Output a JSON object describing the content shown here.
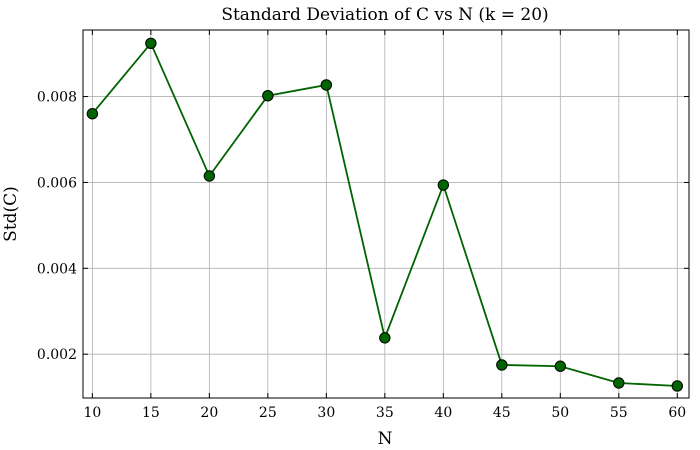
{
  "chart_data": {
    "type": "line",
    "title": "Standard Deviation of C vs N (k = 20)",
    "xlabel": "N",
    "ylabel": "Std(C)",
    "x": [
      10,
      15,
      20,
      25,
      30,
      35,
      40,
      45,
      50,
      55,
      60
    ],
    "xticks": [
      10,
      15,
      20,
      25,
      30,
      35,
      40,
      45,
      50,
      55,
      60
    ],
    "xtick_labels": [
      "10",
      "15",
      "20",
      "25",
      "30",
      "35",
      "40",
      "45",
      "50",
      "55",
      "60"
    ],
    "yticks": [
      0.002,
      0.004,
      0.006,
      0.008
    ],
    "ytick_labels": [
      "0.002",
      "0.004",
      "0.006",
      "0.008"
    ],
    "xlim": [
      9.2,
      61.0
    ],
    "ylim": [
      0.00098,
      0.00955
    ],
    "grid": true,
    "series": [
      {
        "values": [
          0.0076,
          0.00924,
          0.00615,
          0.00802,
          0.00827,
          0.00238,
          0.00594,
          0.00175,
          0.00172,
          0.00133,
          0.00126
        ],
        "color": "#006400",
        "marker_color": "#006400"
      }
    ]
  }
}
